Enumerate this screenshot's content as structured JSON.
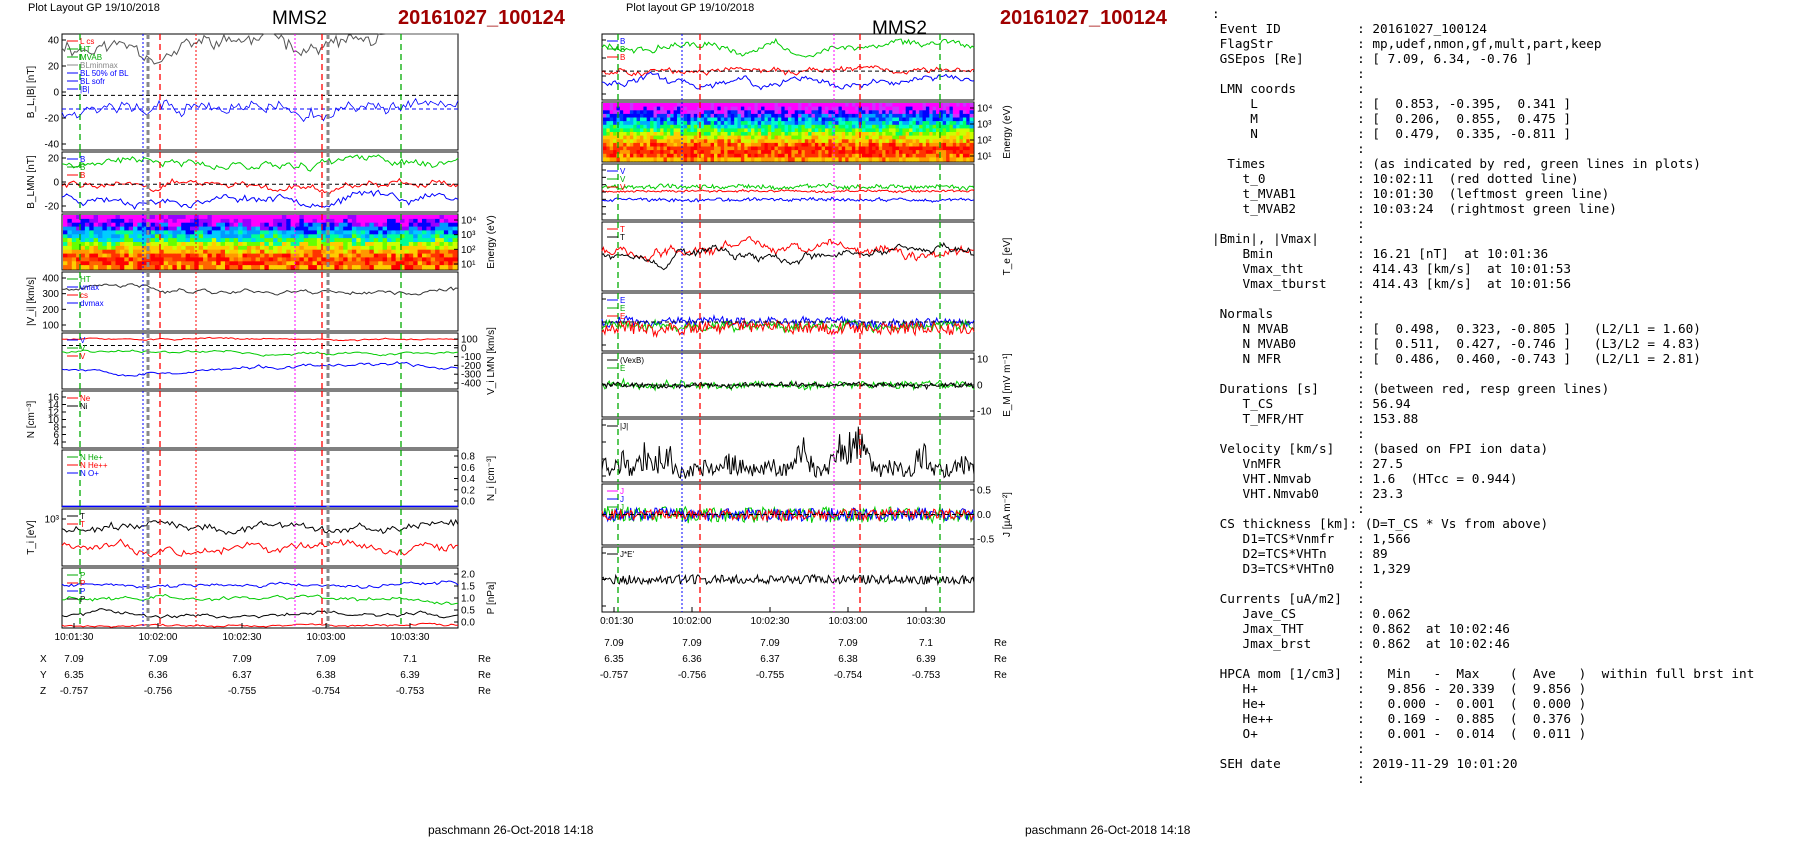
{
  "left": {
    "layout_label": "Plot Layout GP 19/10/2018",
    "sc": "MMS2",
    "event": "20161027_100124",
    "footer": "paschmann 26-Oct-2018 14:18",
    "panels": [
      {
        "ylabel": "B_L,|B| [nT]",
        "ticks": [
          "40",
          "20",
          "0",
          "-20",
          "-40"
        ],
        "side": "left",
        "legend": [
          {
            "t": "L cs",
            "c": "#ff0000"
          },
          {
            "t": "HT",
            "c": "#00aa00"
          },
          {
            "t": "MVAB",
            "c": "#00aa00"
          },
          {
            "t": "BLminmax",
            "c": "#888888"
          },
          {
            "t": "BL 50% of BL",
            "c": "#0000ff"
          },
          {
            "t": "BL sofr",
            "c": "#0000ff"
          },
          {
            "t": "|B|",
            "c": "#0000ff"
          }
        ]
      },
      {
        "ylabel": "B_LMN [nT]",
        "ticks": [
          "20",
          "0",
          "-20"
        ],
        "side": "left",
        "legend": [
          {
            "t": "B",
            "c": "#0000ff"
          },
          {
            "t": "B",
            "c": "#00aa00"
          },
          {
            "t": "B",
            "c": "#ff0000"
          }
        ]
      },
      {
        "ylabel": "Energy (eV)",
        "ticks": [
          "10⁴",
          "10³",
          "10²",
          "10¹"
        ],
        "side": "right",
        "legend": []
      },
      {
        "ylabel": "|V_i| [km/s]",
        "ticks": [
          "400",
          "300",
          "200",
          "100"
        ],
        "side": "left",
        "legend": [
          {
            "t": "HT",
            "c": "#00aa00"
          },
          {
            "t": "vmax",
            "c": "#0000ff"
          },
          {
            "t": "cs",
            "c": "#ff0000"
          },
          {
            "t": "dvmax",
            "c": "#0000ff"
          }
        ]
      },
      {
        "ylabel": "V_i LMN [km/s]",
        "ticks": [
          "100",
          "0",
          "-100",
          "-200",
          "-300",
          "-400"
        ],
        "side": "right",
        "legend": [
          {
            "t": "V",
            "c": "#0000ff"
          },
          {
            "t": "V",
            "c": "#00aa00"
          },
          {
            "t": "V",
            "c": "#ff0000"
          }
        ]
      },
      {
        "ylabel": "N [cm⁻³]",
        "ticks": [
          "16",
          "14",
          "12",
          "10",
          "8",
          "6",
          "4"
        ],
        "side": "left",
        "legend": [
          {
            "t": "Ne",
            "c": "#ff0000"
          },
          {
            "t": "Ni",
            "c": "#000000"
          }
        ]
      },
      {
        "ylabel": "N_i [cm⁻³]",
        "ticks": [
          "0.8",
          "0.6",
          "0.4",
          "0.2",
          "0.0"
        ],
        "side": "right",
        "legend": [
          {
            "t": "N  He+",
            "c": "#00aa00"
          },
          {
            "t": "N  He++",
            "c": "#ff0000"
          },
          {
            "t": "N  O+",
            "c": "#0000ff"
          }
        ]
      },
      {
        "ylabel": "T_i [eV]",
        "ticks": [
          "10³"
        ],
        "side": "left",
        "legend": [
          {
            "t": "T",
            "c": "#000000"
          },
          {
            "t": "T",
            "c": "#ff0000"
          }
        ]
      },
      {
        "ylabel": "P [nPa]",
        "ticks": [
          "2.0",
          "1.5",
          "1.0",
          "0.5",
          "0.0"
        ],
        "side": "right",
        "legend": [
          {
            "t": "P",
            "c": "#00aa00"
          },
          {
            "t": "P",
            "c": "#ff0000"
          },
          {
            "t": "P",
            "c": "#0000ff"
          },
          {
            "t": "P",
            "c": "#000000"
          }
        ]
      }
    ],
    "time_ticks": [
      "10:01:30",
      "10:02:00",
      "10:02:30",
      "10:03:00",
      "10:03:30"
    ],
    "eph": [
      {
        "name": "X",
        "vals": [
          "7.09",
          "7.09",
          "7.09",
          "7.09",
          "7.1"
        ],
        "unit": "Re"
      },
      {
        "name": "Y",
        "vals": [
          "6.35",
          "6.36",
          "6.37",
          "6.38",
          "6.39"
        ],
        "unit": "Re"
      },
      {
        "name": "Z",
        "vals": [
          "-0.757",
          "-0.756",
          "-0.755",
          "-0.754",
          "-0.753"
        ],
        "unit": "Re"
      }
    ]
  },
  "mid": {
    "layout_label": "Plot layout GP 19/10/2018",
    "sc": "MMS2",
    "event": "20161027_100124",
    "footer": "paschmann 26-Oct-2018 14:18",
    "panels": [
      {
        "ylabel": "B_LMN [nT]",
        "ticks": [
          "40",
          "20",
          "0",
          "-20"
        ],
        "side": "left",
        "legend": [
          {
            "t": "B",
            "c": "#0000ff"
          },
          {
            "t": "B",
            "c": "#00aa00"
          },
          {
            "t": "B",
            "c": "#ff0000"
          }
        ]
      },
      {
        "ylabel": "Energy (eV)",
        "ticks": [
          "10⁴",
          "10³",
          "10²",
          "10¹"
        ],
        "side": "right",
        "legend": []
      },
      {
        "ylabel": "V_e LMN [km/s]",
        "ticks": [
          "600",
          "400",
          "200",
          "0",
          "-200",
          "-400",
          "-600"
        ],
        "side": "left",
        "legend": [
          {
            "t": "V",
            "c": "#0000ff"
          },
          {
            "t": "V",
            "c": "#00aa00"
          },
          {
            "t": "V",
            "c": "#ff0000"
          }
        ]
      },
      {
        "ylabel": "T_e [eV]",
        "ticks": [],
        "side": "right",
        "legend": [
          {
            "t": "T",
            "c": "#ff0000"
          },
          {
            "t": "T",
            "c": "#000000"
          }
        ]
      },
      {
        "ylabel": "E_LMN [mV m⁻¹]",
        "ticks": [
          "10",
          "0",
          "-10"
        ],
        "side": "left",
        "legend": [
          {
            "t": "E",
            "c": "#0000ff"
          },
          {
            "t": "E",
            "c": "#00aa00"
          },
          {
            "t": "E",
            "c": "#ff0000"
          }
        ]
      },
      {
        "ylabel": "E_M [mV m⁻¹]",
        "ticks": [
          "10",
          "0",
          "-10"
        ],
        "side": "right",
        "legend": [
          {
            "t": "(VexB)",
            "c": "#000000"
          },
          {
            "t": "E",
            "c": "#00aa00"
          }
        ]
      },
      {
        "ylabel": "|J| [µA m⁻²]",
        "ticks": [
          "0.8",
          "0.6",
          "0.4",
          "0.2"
        ],
        "side": "left",
        "legend": [
          {
            "t": "|J|",
            "c": "#000000"
          }
        ]
      },
      {
        "ylabel": "J [µA m⁻²]",
        "ticks": [
          "0.5",
          "0.0",
          "-0.5"
        ],
        "side": "right",
        "legend": [
          {
            "t": "J",
            "c": "#ff00ff"
          },
          {
            "t": "J",
            "c": "#0000ff"
          },
          {
            "t": "J",
            "c": "#00aa00"
          }
        ]
      },
      {
        "ylabel": "J*E' [nW m⁻³]",
        "ticks": [
          "1",
          "0",
          "-1"
        ],
        "side": "left",
        "legend": [
          {
            "t": "J*E'",
            "c": "#000000"
          }
        ]
      }
    ],
    "time_ticks": [
      "10:01:30",
      "10:02:00",
      "10:02:30",
      "10:03:00",
      "10:03:30"
    ],
    "eph": [
      {
        "name": "X",
        "vals": [
          "7.09",
          "7.09",
          "7.09",
          "7.09",
          "7.1"
        ],
        "unit": "Re"
      },
      {
        "name": "Y",
        "vals": [
          "6.35",
          "6.36",
          "6.37",
          "6.38",
          "6.39"
        ],
        "unit": "Re"
      },
      {
        "name": "Z",
        "vals": [
          "-0.757",
          "-0.756",
          "-0.755",
          "-0.754",
          "-0.753"
        ],
        "unit": "Re"
      }
    ]
  },
  "summary_lines": [
    ":",
    " Event ID          : 20161027_100124",
    " FlagStr           : mp,udef,nmon,gf,mult,part,keep",
    " GSEpos [Re]       : [ 7.09, 6.34, -0.76 ]",
    "                   :",
    " LMN coords        :",
    "     L             : [  0.853, -0.395,  0.341 ]",
    "     M             : [  0.206,  0.855,  0.475 ]",
    "     N             : [  0.479,  0.335, -0.811 ]",
    "                   :",
    "  Times            : (as indicated by red, green lines in plots)",
    "    t_0            : 10:02:11  (red dotted line)",
    "    t_MVAB1        : 10:01:30  (leftmost green line)",
    "    t_MVAB2        : 10:03:24  (rightmost green line)",
    "                   :",
    "|Bmin|, |Vmax|     :",
    "    Bmin           : 16.21 [nT]  at 10:01:36",
    "    Vmax_tht       : 414.43 [km/s]  at 10:01:53",
    "    Vmax_tburst    : 414.43 [km/s]  at 10:01:56",
    "                   :",
    " Normals           :",
    "    N MVAB         : [  0.498,  0.323, -0.805 ]   (L2/L1 = 1.60)",
    "    N MVAB0        : [  0.511,  0.427, -0.746 ]   (L3/L2 = 4.83)",
    "    N MFR          : [  0.486,  0.460, -0.743 ]   (L2/L1 = 2.81)",
    "                   :",
    " Durations [s]     : (between red, resp green lines)",
    "    T_CS           : 56.94",
    "    T_MFR/HT       : 153.88",
    "                   :",
    " Velocity [km/s]   : (based on FPI ion data)",
    "    VnMFR          : 27.5",
    "    VHT.Nmvab      : 1.6  (HTcc = 0.944)",
    "    VHT.Nmvab0     : 23.3",
    "                   :",
    " CS thickness [km]: (D=T_CS * Vs from above)",
    "    D1=TCS*Vnmfr   : 1,566",
    "    D2=TCS*VHTn    : 89",
    "    D3=TCS*VHTn0   : 1,329",
    "                   :",
    " Currents [uA/m2]  :",
    "    Jave_CS        : 0.062",
    "    Jmax_THT       : 0.862  at 10:02:46",
    "    Jmax_brst      : 0.862  at 10:02:46",
    "                   :",
    " HPCA mom [1/cm3]  :   Min   -  Max    (  Ave   )  within full brst int",
    "    H+             :   9.856 - 20.339  (  9.856 )",
    "    He+            :   0.000 -  0.001  (  0.000 )",
    "    He++           :   0.169 -  0.885  (  0.376 )",
    "    O+             :   0.001 -  0.014  (  0.011 )",
    "                   :",
    " SEH date          : 2019-11-29 10:01:20",
    "                   :"
  ],
  "chart_data": [
    {
      "type": "line",
      "title": "MMS2 20161027_100124",
      "x_ticks": [
        "10:01:30",
        "10:02:00",
        "10:02:30",
        "10:03:00",
        "10:03:30"
      ],
      "panels": [
        "B_L,|B| [nT]",
        "B_LMN [nT]",
        "Energy (eV)",
        "|V_i| [km/s]",
        "V_i LMN [km/s]",
        "N [cm⁻³]",
        "N_i [cm⁻³]",
        "T_i [eV]",
        "P [nPa]"
      ],
      "series": [
        {
          "name": "BL sofr",
          "panel": 0,
          "ylim": [
            -40,
            45
          ],
          "values": [
            -15,
            -18,
            -10,
            -5,
            2,
            18,
            20,
            12,
            2,
            -3,
            -6,
            -2,
            -10,
            -5,
            -8,
            -12,
            -10,
            -14,
            -18,
            -22,
            -20,
            -30,
            -42,
            -38,
            -28,
            -22,
            -18,
            -26,
            -32,
            -33,
            -28,
            -24,
            -20,
            -18,
            -17,
            -16
          ]
        },
        {
          "name": "Ni",
          "panel": 5,
          "ylim": [
            4,
            16
          ],
          "values": [
            9,
            8,
            6,
            7,
            11,
            12,
            13,
            11,
            10,
            12,
            9,
            7,
            6,
            5,
            10,
            11,
            12,
            10,
            9,
            11,
            12,
            10,
            11,
            13,
            12,
            11,
            10,
            12,
            11,
            13,
            12,
            11,
            10,
            11,
            12,
            11
          ]
        },
        {
          "name": "N He++",
          "panel": 6,
          "ylim": [
            0,
            0.8
          ],
          "values": [
            0.35,
            0.33,
            0.85,
            0.35,
            0.55,
            0.25,
            0.55,
            0.3,
            0.2,
            0.35,
            0.35
          ]
        }
      ]
    },
    {
      "type": "line",
      "title": "MMS2 20161027_100124",
      "x_ticks": [
        "10:01:30",
        "10:02:00",
        "10:02:30",
        "10:03:00",
        "10:03:30"
      ],
      "panels": [
        "B_LMN [nT]",
        "Energy (eV)",
        "V_e LMN [km/s]",
        "T_e [eV]",
        "E_LMN [mV m⁻¹]",
        "E_M [mV m⁻¹]",
        "|J| [µA m⁻²]",
        "J [µA m⁻²]",
        "J*E' [nW m⁻³]"
      ],
      "series": [
        {
          "name": "|J|",
          "panel": 6,
          "ylim": [
            0,
            0.9
          ],
          "values": [
            0.3,
            0.25,
            0.4,
            0.2,
            0.5,
            0.3,
            0.65,
            0.2,
            0.15,
            0.3,
            0.25,
            0.2,
            0.4,
            0.3,
            0.2,
            0.25,
            0.3,
            0.2,
            0.35,
            0.55,
            0.2,
            0.3,
            0.45,
            0.8,
            0.86,
            0.4,
            0.2,
            0.3,
            0.25,
            0.2,
            0.6,
            0.3,
            0.2,
            0.25,
            0.35,
            0.2
          ]
        }
      ]
    }
  ]
}
